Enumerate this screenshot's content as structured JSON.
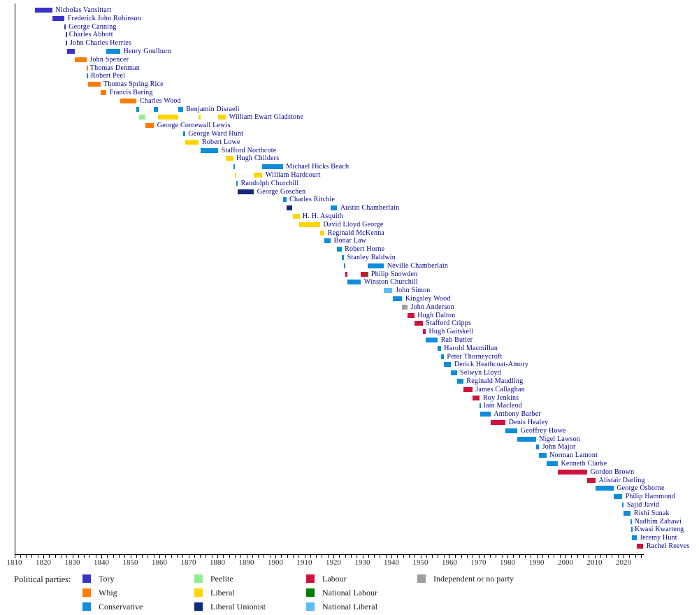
{
  "page": {
    "background": "#ffffff"
  },
  "text_colors": {
    "names": "#00008f",
    "ticks": "#2e2e2e",
    "legend": "#1a1a1a"
  },
  "party_colors": {
    "tory": "#3b33c8",
    "whig": "#ff7d00",
    "conservative": "#0d8ddb",
    "peelite": "#90ee90",
    "liberal": "#ffd400",
    "liberal_unionist": "#12297c",
    "labour": "#d2123e",
    "national_labour": "#008000",
    "national_liberal": "#5abef5",
    "independent": "#9e9e9e"
  },
  "legend": {
    "heading": "Political parties:",
    "columns": [
      [
        {
          "party": "tory",
          "label": "Tory"
        },
        {
          "party": "whig",
          "label": "Whig"
        },
        {
          "party": "conservative",
          "label": "Conservative"
        }
      ],
      [
        {
          "party": "peelite",
          "label": "Peelite"
        },
        {
          "party": "liberal",
          "label": "Liberal"
        },
        {
          "party": "liberal_unionist",
          "label": "Liberal Unionist"
        }
      ],
      [
        {
          "party": "labour",
          "label": "Labour"
        },
        {
          "party": "national_labour",
          "label": "National Labour"
        },
        {
          "party": "national_liberal",
          "label": "National Liberal"
        }
      ],
      [
        {
          "party": "independent",
          "label": "Independent or no party"
        }
      ]
    ]
  },
  "chart_data": {
    "type": "timeline",
    "title": "",
    "x_axis": {
      "start": 1810,
      "end": 2026,
      "major_tick_interval": 10,
      "minor_tick_interval": 2,
      "tick_labels": [
        "1810",
        "1820",
        "1830",
        "1840",
        "1850",
        "1860",
        "1870",
        "1880",
        "1890",
        "1900",
        "1910",
        "1920",
        "1930",
        "1940",
        "1950",
        "1960",
        "1970",
        "1980",
        "1990",
        "2000",
        "2010",
        "2020"
      ]
    },
    "people": [
      {
        "name": "Nicholas Vansittart",
        "segments": [
          {
            "start": 1817.0,
            "end": 1823.1,
            "party": "tory"
          }
        ]
      },
      {
        "name": "Frederick John Robinson",
        "segments": [
          {
            "start": 1823.1,
            "end": 1827.3,
            "party": "tory"
          }
        ]
      },
      {
        "name": "George Canning",
        "segments": [
          {
            "start": 1827.3,
            "end": 1827.65,
            "party": "tory"
          }
        ]
      },
      {
        "name": "Charles Abbott",
        "segments": [
          {
            "start": 1827.65,
            "end": 1827.75,
            "party": "tory"
          }
        ]
      },
      {
        "name": "John Charles Herries",
        "segments": [
          {
            "start": 1827.75,
            "end": 1828.1,
            "party": "tory"
          }
        ]
      },
      {
        "name": "Henry Goulburn",
        "segments": [
          {
            "start": 1828.1,
            "end": 1830.9,
            "party": "tory"
          },
          {
            "start": 1841.7,
            "end": 1846.5,
            "party": "conservative"
          }
        ]
      },
      {
        "name": "John Spencer",
        "segments": [
          {
            "start": 1830.9,
            "end": 1834.9,
            "party": "whig"
          }
        ]
      },
      {
        "name": "Thomas Denman",
        "segments": [
          {
            "start": 1834.85,
            "end": 1835.0,
            "party": "whig"
          }
        ]
      },
      {
        "name": "Robert Peel",
        "segments": [
          {
            "start": 1834.95,
            "end": 1835.3,
            "party": "conservative"
          }
        ]
      },
      {
        "name": "Thomas Spring Rice",
        "segments": [
          {
            "start": 1835.3,
            "end": 1839.65,
            "party": "whig"
          }
        ]
      },
      {
        "name": "Francis Baring",
        "segments": [
          {
            "start": 1839.65,
            "end": 1841.7,
            "party": "whig"
          }
        ]
      },
      {
        "name": "Charles Wood",
        "segments": [
          {
            "start": 1846.5,
            "end": 1852.15,
            "party": "whig"
          }
        ]
      },
      {
        "name": "Benjamin Disraeli",
        "segments": [
          {
            "start": 1852.15,
            "end": 1852.95,
            "party": "conservative"
          },
          {
            "start": 1858.15,
            "end": 1859.5,
            "party": "conservative"
          },
          {
            "start": 1866.5,
            "end": 1868.15,
            "party": "conservative"
          }
        ]
      },
      {
        "name": "William Ewart Gladstone",
        "segments": [
          {
            "start": 1852.95,
            "end": 1855.15,
            "party": "peelite"
          },
          {
            "start": 1859.5,
            "end": 1866.5,
            "party": "liberal"
          },
          {
            "start": 1873.6,
            "end": 1874.15,
            "party": "liberal"
          },
          {
            "start": 1880.3,
            "end": 1882.95,
            "party": "liberal"
          }
        ]
      },
      {
        "name": "George Cornewall Lewis",
        "segments": [
          {
            "start": 1855.15,
            "end": 1858.15,
            "party": "whig"
          }
        ]
      },
      {
        "name": "George Ward Hunt",
        "segments": [
          {
            "start": 1868.15,
            "end": 1868.9,
            "party": "conservative"
          }
        ]
      },
      {
        "name": "Robert Lowe",
        "segments": [
          {
            "start": 1868.9,
            "end": 1873.6,
            "party": "liberal"
          }
        ]
      },
      {
        "name": "Stafford Northcote",
        "segments": [
          {
            "start": 1874.15,
            "end": 1880.3,
            "party": "conservative"
          }
        ]
      },
      {
        "name": "Hugh Childers",
        "segments": [
          {
            "start": 1882.95,
            "end": 1885.45,
            "party": "liberal"
          }
        ]
      },
      {
        "name": "Michael Hicks Beach",
        "segments": [
          {
            "start": 1885.45,
            "end": 1886.1,
            "party": "conservative"
          },
          {
            "start": 1895.5,
            "end": 1902.6,
            "party": "conservative"
          }
        ]
      },
      {
        "name": "William Hardcourt",
        "segments": [
          {
            "start": 1886.1,
            "end": 1886.6,
            "party": "liberal"
          },
          {
            "start": 1892.6,
            "end": 1895.5,
            "party": "liberal"
          }
        ]
      },
      {
        "name": "Randolph Churchill",
        "segments": [
          {
            "start": 1886.6,
            "end": 1887.0,
            "party": "conservative"
          }
        ]
      },
      {
        "name": "George Goschen",
        "segments": [
          {
            "start": 1887.0,
            "end": 1892.6,
            "party": "liberal_unionist"
          }
        ]
      },
      {
        "name": "Charles Ritchie",
        "segments": [
          {
            "start": 1902.6,
            "end": 1903.75,
            "party": "conservative"
          }
        ]
      },
      {
        "name": "Austin Chamberlain",
        "segments": [
          {
            "start": 1903.75,
            "end": 1905.9,
            "party": "liberal_unionist"
          },
          {
            "start": 1919.05,
            "end": 1921.3,
            "party": "conservative"
          }
        ]
      },
      {
        "name": "H. H. Asquith",
        "segments": [
          {
            "start": 1905.9,
            "end": 1908.3,
            "party": "liberal"
          }
        ]
      },
      {
        "name": "David Lloyd George",
        "segments": [
          {
            "start": 1908.3,
            "end": 1915.4,
            "party": "liberal"
          }
        ]
      },
      {
        "name": "Reginald McKenna",
        "segments": [
          {
            "start": 1915.4,
            "end": 1916.95,
            "party": "liberal"
          }
        ]
      },
      {
        "name": "Bonar Law",
        "segments": [
          {
            "start": 1916.95,
            "end": 1919.05,
            "party": "conservative"
          }
        ]
      },
      {
        "name": "Robert Horne",
        "segments": [
          {
            "start": 1921.3,
            "end": 1922.8,
            "party": "conservative"
          }
        ]
      },
      {
        "name": "Stanley Baldwin",
        "segments": [
          {
            "start": 1922.8,
            "end": 1923.65,
            "party": "conservative"
          }
        ]
      },
      {
        "name": "Neville Chamberlain",
        "segments": [
          {
            "start": 1923.65,
            "end": 1924.05,
            "party": "conservative"
          },
          {
            "start": 1931.85,
            "end": 1937.4,
            "party": "conservative"
          }
        ]
      },
      {
        "name": "Philip Snowden",
        "segments": [
          {
            "start": 1924.05,
            "end": 1924.85,
            "party": "labour"
          },
          {
            "start": 1929.45,
            "end": 1931.6,
            "party": "labour"
          },
          {
            "start": 1931.6,
            "end": 1931.9,
            "party": "national_labour"
          }
        ]
      },
      {
        "name": "Winston Churchill",
        "segments": [
          {
            "start": 1924.85,
            "end": 1929.45,
            "party": "conservative"
          }
        ]
      },
      {
        "name": "John Simon",
        "segments": [
          {
            "start": 1937.4,
            "end": 1940.35,
            "party": "national_liberal"
          }
        ]
      },
      {
        "name": "Kingsley Wood",
        "segments": [
          {
            "start": 1940.35,
            "end": 1943.7,
            "party": "conservative"
          }
        ]
      },
      {
        "name": "John Anderson",
        "segments": [
          {
            "start": 1943.7,
            "end": 1945.55,
            "party": "independent"
          }
        ]
      },
      {
        "name": "Hugh Dalton",
        "segments": [
          {
            "start": 1945.55,
            "end": 1947.9,
            "party": "labour"
          }
        ]
      },
      {
        "name": "Stafford Cripps",
        "segments": [
          {
            "start": 1947.9,
            "end": 1950.8,
            "party": "labour"
          }
        ]
      },
      {
        "name": "Hugh Gaitskell",
        "segments": [
          {
            "start": 1950.8,
            "end": 1951.8,
            "party": "labour"
          }
        ]
      },
      {
        "name": "Rab Butler",
        "segments": [
          {
            "start": 1951.8,
            "end": 1955.95,
            "party": "conservative"
          }
        ]
      },
      {
        "name": "Harold Macmillan",
        "segments": [
          {
            "start": 1955.95,
            "end": 1957.05,
            "party": "conservative"
          }
        ]
      },
      {
        "name": "Peter Thorneycroft",
        "segments": [
          {
            "start": 1957.05,
            "end": 1958.05,
            "party": "conservative"
          }
        ]
      },
      {
        "name": "Derick Heathcoat-Amory",
        "segments": [
          {
            "start": 1958.05,
            "end": 1960.55,
            "party": "conservative"
          }
        ]
      },
      {
        "name": "Selwyn Lloyd",
        "segments": [
          {
            "start": 1960.55,
            "end": 1962.55,
            "party": "conservative"
          }
        ]
      },
      {
        "name": "Reginald Maudling",
        "segments": [
          {
            "start": 1962.55,
            "end": 1964.8,
            "party": "conservative"
          }
        ]
      },
      {
        "name": "James Callaghan",
        "segments": [
          {
            "start": 1964.8,
            "end": 1967.9,
            "party": "labour"
          }
        ]
      },
      {
        "name": "Roy Jenkins",
        "segments": [
          {
            "start": 1967.9,
            "end": 1970.45,
            "party": "labour"
          }
        ]
      },
      {
        "name": "Iain Macleod",
        "segments": [
          {
            "start": 1970.45,
            "end": 1970.6,
            "party": "conservative"
          }
        ]
      },
      {
        "name": "Anthony Barber",
        "segments": [
          {
            "start": 1970.6,
            "end": 1974.2,
            "party": "conservative"
          }
        ]
      },
      {
        "name": "Denis Healey",
        "segments": [
          {
            "start": 1974.2,
            "end": 1979.35,
            "party": "labour"
          }
        ]
      },
      {
        "name": "Geoffrey Howe",
        "segments": [
          {
            "start": 1979.35,
            "end": 1983.45,
            "party": "conservative"
          }
        ]
      },
      {
        "name": "Nigel Lawson",
        "segments": [
          {
            "start": 1983.45,
            "end": 1989.8,
            "party": "conservative"
          }
        ]
      },
      {
        "name": "John Major",
        "segments": [
          {
            "start": 1989.8,
            "end": 1990.9,
            "party": "conservative"
          }
        ]
      },
      {
        "name": "Norman Lamont",
        "segments": [
          {
            "start": 1990.9,
            "end": 1993.4,
            "party": "conservative"
          }
        ]
      },
      {
        "name": "Kenneth Clarke",
        "segments": [
          {
            "start": 1993.4,
            "end": 1997.35,
            "party": "conservative"
          }
        ]
      },
      {
        "name": "Gordon Brown",
        "segments": [
          {
            "start": 1997.35,
            "end": 2007.5,
            "party": "labour"
          }
        ]
      },
      {
        "name": "Alistair Darling",
        "segments": [
          {
            "start": 2007.5,
            "end": 2010.35,
            "party": "labour"
          }
        ]
      },
      {
        "name": "George Osborne",
        "segments": [
          {
            "start": 2010.35,
            "end": 2016.55,
            "party": "conservative"
          }
        ]
      },
      {
        "name": "Philip Hammond",
        "segments": [
          {
            "start": 2016.55,
            "end": 2019.55,
            "party": "conservative"
          }
        ]
      },
      {
        "name": "Sajid Javid",
        "segments": [
          {
            "start": 2019.55,
            "end": 2020.1,
            "party": "conservative"
          }
        ]
      },
      {
        "name": "Rishi Sunak",
        "segments": [
          {
            "start": 2020.1,
            "end": 2022.5,
            "party": "conservative"
          }
        ]
      },
      {
        "name": "Nadhim Zahawi",
        "segments": [
          {
            "start": 2022.5,
            "end": 2022.7,
            "party": "conservative"
          }
        ]
      },
      {
        "name": "Kwasi Kwarteng",
        "segments": [
          {
            "start": 2022.7,
            "end": 2022.8,
            "party": "conservative"
          }
        ]
      },
      {
        "name": "Jeremy Hunt",
        "segments": [
          {
            "start": 2022.8,
            "end": 2024.5,
            "party": "conservative"
          }
        ]
      },
      {
        "name": "Rachel Reeves",
        "segments": [
          {
            "start": 2024.5,
            "end": 2026.8,
            "party": "labour"
          }
        ]
      }
    ]
  }
}
